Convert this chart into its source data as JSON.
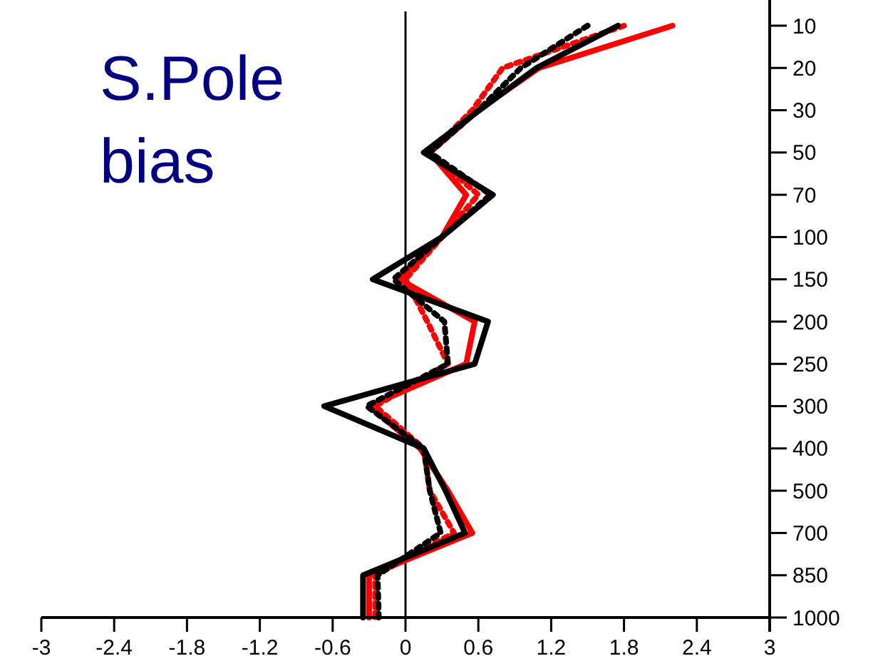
{
  "chart_data": {
    "type": "line",
    "title": "S.Pole\nbias",
    "categories": [
      "10",
      "20",
      "30",
      "50",
      "70",
      "100",
      "150",
      "200",
      "250",
      "300",
      "400",
      "500",
      "700",
      "850",
      "1000"
    ],
    "series": [
      {
        "color": "#ff0000",
        "line_style": "solid",
        "values": [
          2.2,
          1.1,
          0.6,
          0.2,
          0.5,
          0.3,
          -0.05,
          0.57,
          0.5,
          -0.3,
          0.12,
          0.35,
          0.55,
          -0.3,
          -0.3
        ]
      },
      {
        "color": "#ff0000",
        "line_style": "dotted",
        "values": [
          1.8,
          0.8,
          0.55,
          0.2,
          0.6,
          0.3,
          0,
          0.18,
          0.35,
          -0.25,
          0.15,
          0.2,
          0.4,
          -0.25,
          -0.25
        ]
      },
      {
        "color": "#000000",
        "line_style": "dotted",
        "values": [
          1.5,
          0.95,
          0.6,
          0.2,
          0.7,
          0.3,
          -0.1,
          0.32,
          0.35,
          -0.32,
          0.15,
          0.2,
          0.29,
          -0.23,
          -0.22
        ]
      },
      {
        "color": "#000000",
        "line_style": "solid",
        "values": [
          1.75,
          1.08,
          0.61,
          0.15,
          0.72,
          0.3,
          -0.27,
          0.68,
          0.57,
          -0.67,
          0.15,
          0.33,
          0.49,
          -0.35,
          -0.35
        ]
      }
    ],
    "xlim": [
      -3,
      3
    ],
    "xticks": [
      -3,
      -2.4,
      -1.8,
      -1.2,
      -0.6,
      0,
      0.6,
      1.2,
      1.8,
      2.4,
      3
    ],
    "ref_lines": [
      {
        "axis": "x",
        "value": 0,
        "color": "#000000"
      }
    ],
    "orientation": "horizontal",
    "grid": false,
    "marker": "none"
  }
}
